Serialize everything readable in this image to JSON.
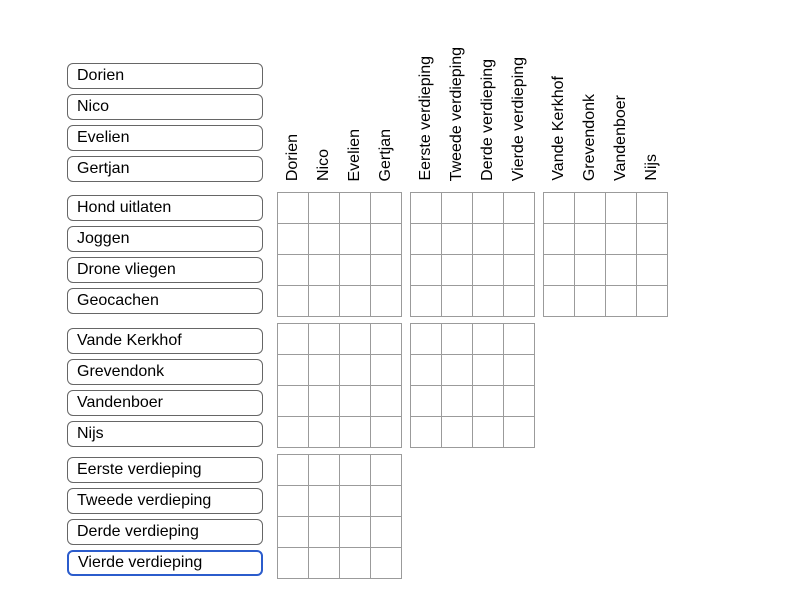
{
  "colors": {
    "grid_line": "#9b9b9b",
    "box_border": "#666666",
    "focus_border": "#2b5ccc",
    "text": "#000000",
    "background": "#ffffff"
  },
  "row_groups": [
    {
      "id": "names",
      "items": [
        "Dorien",
        "Nico",
        "Evelien",
        "Gertjan"
      ]
    },
    {
      "id": "activities",
      "items": [
        "Hond uitlaten",
        "Joggen",
        "Drone vliegen",
        "Geocachen"
      ]
    },
    {
      "id": "surnames",
      "items": [
        "Vande Kerkhof",
        "Grevendonk",
        "Vandenboer",
        "Nijs"
      ]
    },
    {
      "id": "floors",
      "items": [
        "Eerste verdieping",
        "Tweede verdieping",
        "Derde verdieping",
        "Vierde verdieping"
      ]
    }
  ],
  "column_groups": [
    {
      "id": "names",
      "items": [
        "Dorien",
        "Nico",
        "Evelien",
        "Gertjan"
      ]
    },
    {
      "id": "floors",
      "items": [
        "Eerste verdieping",
        "Tweede verdieping",
        "Derde verdieping",
        "Vierde verdieping"
      ]
    },
    {
      "id": "surnames",
      "items": [
        "Vande Kerkhof",
        "Grevendonk",
        "Vandenboer",
        "Nijs"
      ]
    }
  ],
  "grid": {
    "rows_per_band": 4,
    "cols_per_block": 4,
    "bands": [
      {
        "row_group": "activities",
        "blocks": [
          "names",
          "floors",
          "surnames"
        ]
      },
      {
        "row_group": "surnames",
        "blocks": [
          "names",
          "floors"
        ]
      },
      {
        "row_group": "floors",
        "blocks": [
          "names"
        ]
      }
    ],
    "cells_marked": []
  },
  "focused_label": "Vierde verdieping"
}
